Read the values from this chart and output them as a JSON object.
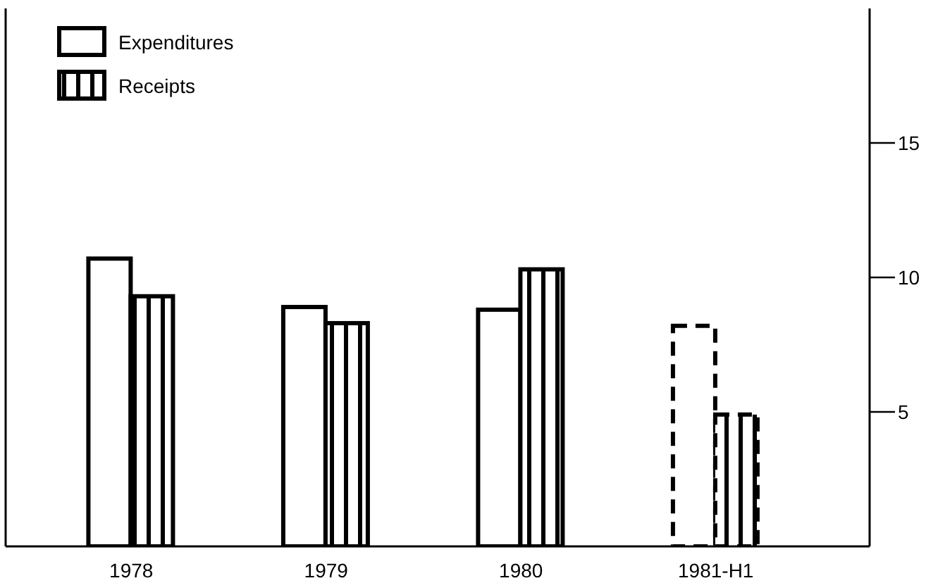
{
  "chart_data": {
    "type": "bar",
    "categories": [
      "1978",
      "1979",
      "1980",
      "1981-H1"
    ],
    "series": [
      {
        "name": "Expenditures",
        "color": "#000000",
        "values": [
          10.7,
          8.9,
          8.8,
          8.2
        ],
        "line_style": [
          "solid",
          "solid",
          "solid",
          "dashed"
        ]
      },
      {
        "name": "Receipts",
        "color": "#000000",
        "values": [
          9.3,
          8.3,
          10.3,
          4.9
        ],
        "line_style": [
          "solid",
          "solid",
          "solid",
          "dashed"
        ]
      }
    ],
    "ylim": [
      0,
      20
    ],
    "yticks": [
      5,
      10,
      15
    ],
    "legend": "top left"
  }
}
